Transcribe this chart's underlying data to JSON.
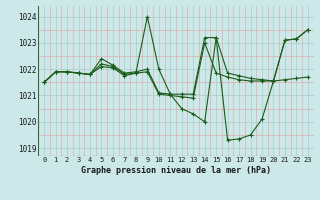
{
  "title": "Graphe pression niveau de la mer (hPa)",
  "bg_color": "#cce8e8",
  "grid_major_color": "#aacccc",
  "grid_minor_color": "#e8c8c8",
  "line_color": "#1a5c1a",
  "marker_color": "#1a5c1a",
  "xlim": [
    -0.5,
    23.5
  ],
  "ylim": [
    1018.7,
    1024.4
  ],
  "yticks": [
    1019,
    1020,
    1021,
    1022,
    1023,
    1024
  ],
  "xticks": [
    0,
    1,
    2,
    3,
    4,
    5,
    6,
    7,
    8,
    9,
    10,
    11,
    12,
    13,
    14,
    15,
    16,
    17,
    18,
    19,
    20,
    21,
    22,
    23
  ],
  "series": [
    [
      1021.5,
      1021.9,
      1021.9,
      1021.85,
      1021.8,
      1022.2,
      1022.1,
      1021.8,
      1021.85,
      1024.0,
      1022.0,
      1021.05,
      1020.5,
      1020.3,
      1020.0,
      1023.2,
      1019.3,
      1019.35,
      1019.5,
      1020.1,
      1021.55,
      1023.1,
      1023.15,
      1023.5
    ],
    [
      1021.5,
      1021.9,
      1021.9,
      1021.85,
      1021.8,
      1022.4,
      1022.15,
      1021.85,
      1021.9,
      1022.0,
      1021.1,
      1021.05,
      1021.05,
      1021.05,
      1023.2,
      1023.2,
      1021.85,
      1021.75,
      1021.65,
      1021.6,
      1021.55,
      1021.6,
      1021.65,
      1021.7
    ],
    [
      1021.5,
      1021.9,
      1021.9,
      1021.85,
      1021.8,
      1022.1,
      1022.05,
      1021.75,
      1021.85,
      1021.9,
      1021.05,
      1021.0,
      1020.95,
      1020.9,
      1023.0,
      1021.85,
      1021.7,
      1021.6,
      1021.55,
      1021.55,
      1021.55,
      1023.1,
      1023.15,
      1023.5
    ]
  ]
}
